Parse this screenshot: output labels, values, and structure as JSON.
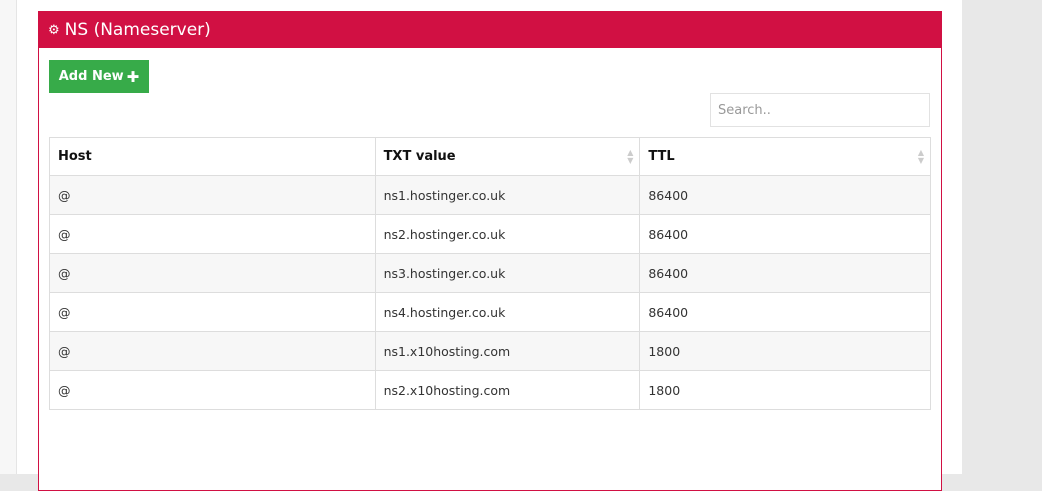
{
  "colors": {
    "header": "#d11043",
    "button": "#37ab49"
  },
  "card": {
    "title": "NS (Nameserver)",
    "icon": "gears-icon"
  },
  "add_button": {
    "label": "Add New",
    "icon": "plus-icon"
  },
  "search": {
    "placeholder": "Search..",
    "value": ""
  },
  "table": {
    "columns": [
      "Host",
      "TXT value",
      "TTL"
    ],
    "rows": [
      [
        "@",
        "ns1.hostinger.co.uk",
        "86400"
      ],
      [
        "@",
        "ns2.hostinger.co.uk",
        "86400"
      ],
      [
        "@",
        "ns3.hostinger.co.uk",
        "86400"
      ],
      [
        "@",
        "ns4.hostinger.co.uk",
        "86400"
      ],
      [
        "@",
        "ns1.x10hosting.com",
        "1800"
      ],
      [
        "@",
        "ns2.x10hosting.com",
        "1800"
      ]
    ]
  }
}
